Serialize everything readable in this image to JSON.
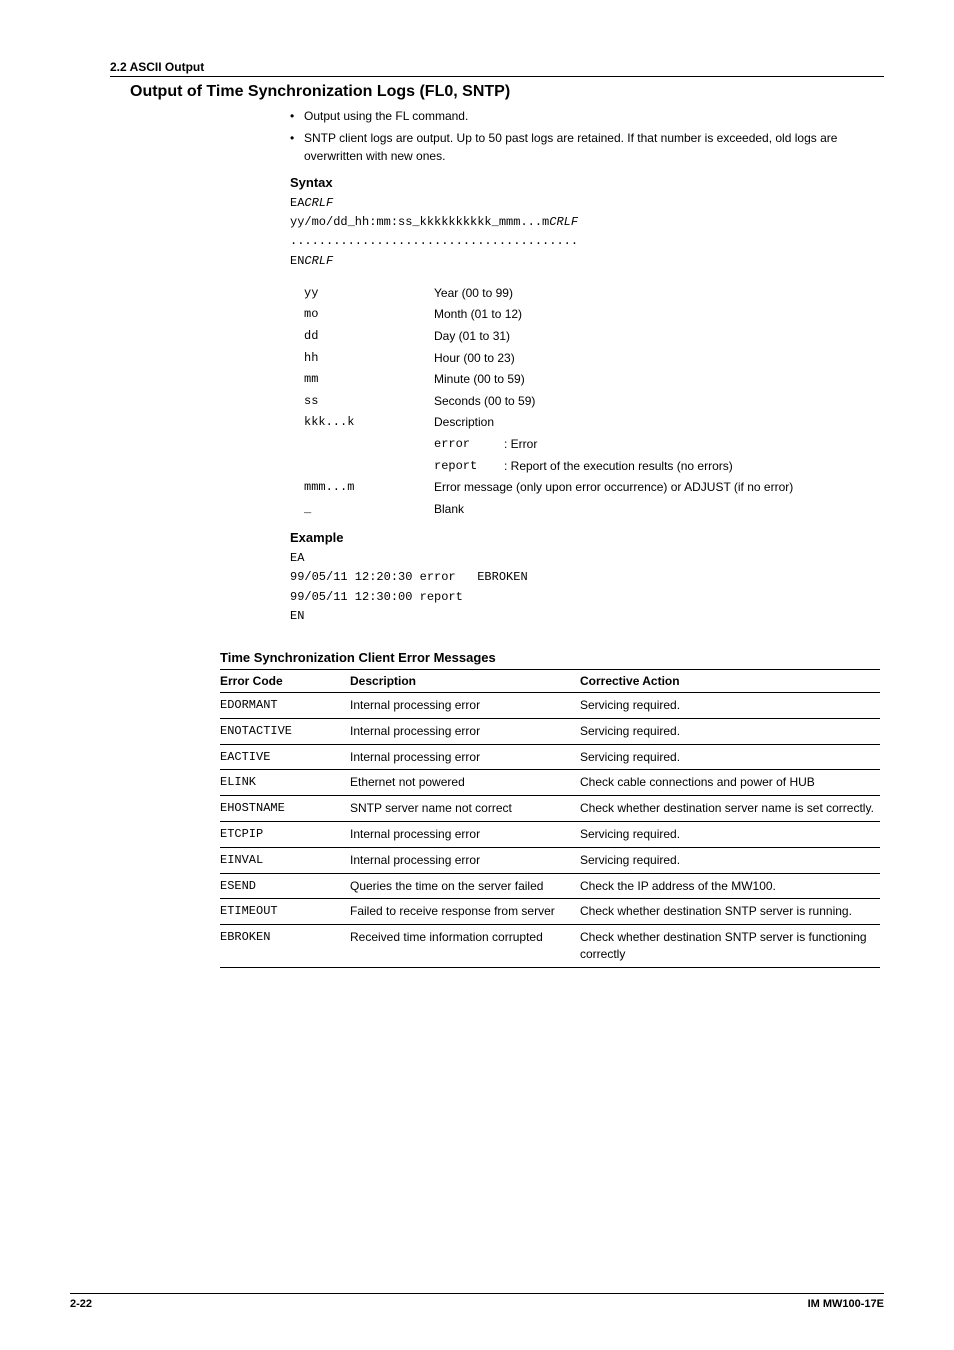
{
  "header": {
    "section": "2.2  ASCII Output"
  },
  "title": "Output of Time Synchronization Logs (FL0, SNTP)",
  "bullets": [
    "Output using the FL command.",
    "SNTP client logs are output. Up to 50 past logs are retained. If that number is exceeded, old logs are overwritten with new ones."
  ],
  "syntax": {
    "heading": "Syntax",
    "lines": [
      {
        "pre": "EA",
        "ital": "CRLF"
      },
      {
        "pre": "yy/mo/dd_hh:mm:ss_kkkkkkkkkk_mmm...m",
        "ital": "CRLF"
      },
      {
        "pre": "........................................",
        "ital": ""
      },
      {
        "pre": "EN",
        "ital": "CRLF"
      }
    ],
    "params": [
      {
        "k": "yy",
        "v": "Year (00 to 99)"
      },
      {
        "k": "mo",
        "v": "Month (01 to 12)"
      },
      {
        "k": "dd",
        "v": "Day (01 to 31)"
      },
      {
        "k": "hh",
        "v": "Hour (00 to 23)"
      },
      {
        "k": "mm",
        "v": "Minute (00 to 59)"
      },
      {
        "k": "ss",
        "v": "Seconds (00 to 59)"
      }
    ],
    "kkk_key": "kkk...k",
    "kkk_label": "Description",
    "kkk_sub": [
      {
        "code": "error",
        "txt": ": Error"
      },
      {
        "code": "report",
        "txt": ": Report of the execution results (no errors)"
      }
    ],
    "mmm_key": "mmm...m",
    "mmm_val": "Error message (only upon error occurrence) or ADJUST (if no error)",
    "blank_key": "_",
    "blank_val": "Blank"
  },
  "example": {
    "heading": "Example",
    "lines": [
      "EA",
      "99/05/11 12:20:30 error   EBROKEN",
      "99/05/11 12:30:00 report",
      "EN"
    ]
  },
  "err": {
    "heading": "Time Synchronization Client Error Messages",
    "cols": [
      "Error Code",
      "Description",
      "Corrective Action"
    ],
    "rows": [
      {
        "code": "EDORMANT",
        "desc": "Internal processing error",
        "act": "Servicing required."
      },
      {
        "code": "ENOTACTIVE",
        "desc": "Internal processing error",
        "act": "Servicing required."
      },
      {
        "code": "EACTIVE",
        "desc": "Internal processing error",
        "act": "Servicing required."
      },
      {
        "code": "ELINK",
        "desc": "Ethernet not powered",
        "act": "Check cable connections and power of HUB"
      },
      {
        "code": "EHOSTNAME",
        "desc": "SNTP server name not correct",
        "act": "Check whether destination server name is set correctly."
      },
      {
        "code": "ETCPIP",
        "desc": "Internal processing error",
        "act": "Servicing required."
      },
      {
        "code": "EINVAL",
        "desc": "Internal processing error",
        "act": "Servicing required."
      },
      {
        "code": "ESEND",
        "desc": "Queries the time on the server failed",
        "act": "Check the IP address of the MW100."
      },
      {
        "code": "ETIMEOUT",
        "desc": "Failed to receive response from server",
        "act": "Check whether destination SNTP server is running."
      },
      {
        "code": "EBROKEN",
        "desc": "Received time information corrupted",
        "act": "Check whether destination SNTP server is functioning correctly"
      }
    ]
  },
  "footer": {
    "page": "2-22",
    "doc": "IM MW100-17E"
  }
}
